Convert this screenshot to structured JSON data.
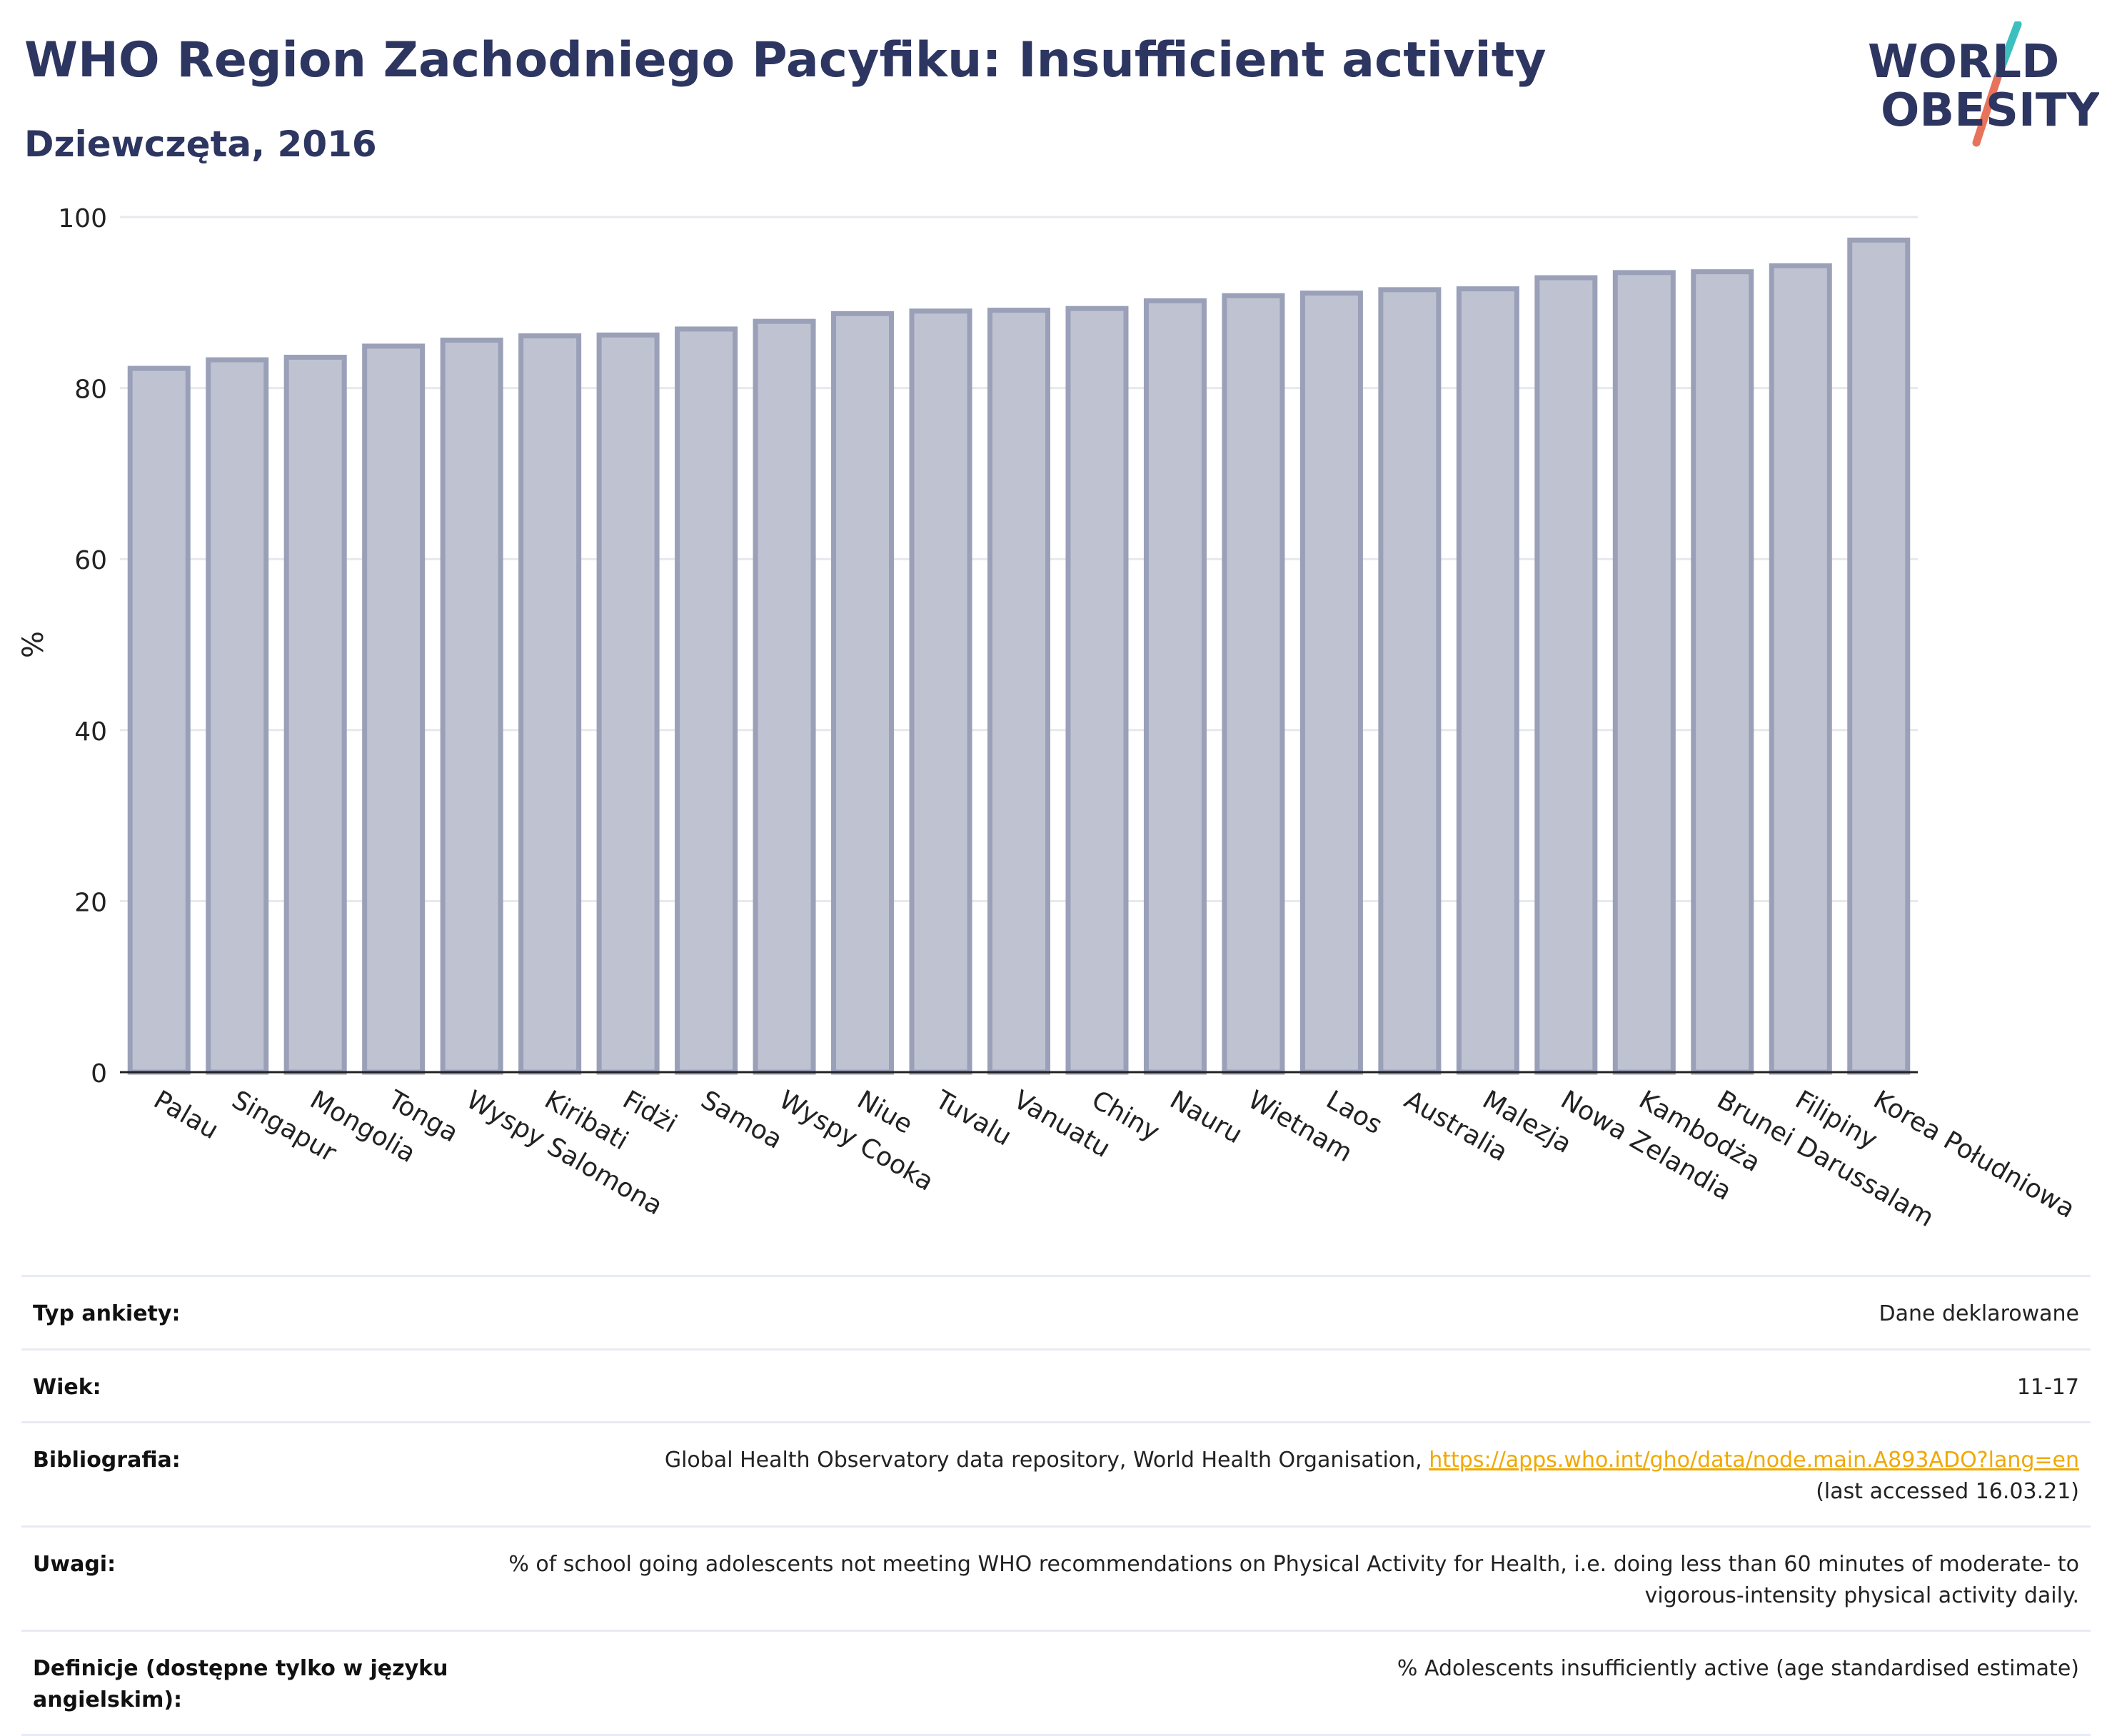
{
  "header": {
    "title": "WHO Region Zachodniego Pacyfiku: Insufficient activity",
    "subtitle": "Dziewczęta, 2016"
  },
  "logo": {
    "line1": "WORLD",
    "line2": "OBESITY",
    "colors": {
      "text": "#2d3561",
      "slash_top": "#3bbfbf",
      "slash_bottom": "#e8735a"
    }
  },
  "chart_data": {
    "type": "bar",
    "title": "WHO Region Zachodniego Pacyfiku: Insufficient activity",
    "subtitle": "Dziewczęta, 2016",
    "xlabel": "",
    "ylabel": "%",
    "ylim": [
      0,
      100
    ],
    "yticks": [
      0,
      20,
      40,
      60,
      80,
      100
    ],
    "grid": true,
    "categories": [
      "Palau",
      "Singapur",
      "Mongolia",
      "Tonga",
      "Wyspy Salomona",
      "Kiribati",
      "Fidżi",
      "Samoa",
      "Wyspy Cooka",
      "Niue",
      "Tuvalu",
      "Vanuatu",
      "Chiny",
      "Nauru",
      "Wietnam",
      "Laos",
      "Australia",
      "Malezja",
      "Nowa Zelandia",
      "Kambodża",
      "Brunei Darussalam",
      "Filipiny",
      "Korea Południowa"
    ],
    "values": [
      82.3,
      83.3,
      83.6,
      84.9,
      85.6,
      86.1,
      86.2,
      86.9,
      87.8,
      88.7,
      89.0,
      89.1,
      89.3,
      90.2,
      90.8,
      91.1,
      91.5,
      91.6,
      92.9,
      93.5,
      93.6,
      94.3,
      97.3
    ],
    "colors": {
      "bar_fill": "#bfc3d1",
      "bar_stroke": "#9aa0b8",
      "grid": "#e6e8ee",
      "axis": "#222222"
    }
  },
  "metadata": {
    "rows": [
      {
        "label": "Typ ankiety:",
        "value": "Dane deklarowane"
      },
      {
        "label": "Wiek:",
        "value": "11-17"
      },
      {
        "label": "Bibliografia:",
        "value": "Global Health Observatory data repository, World Health Organisation,",
        "link": "https://apps.who.int/gho/data/node.main.A893ADO?lang=en",
        "value_after": "(last accessed 16.03.21)"
      },
      {
        "label": "Uwagi:",
        "value": "% of school going adolescents not meeting WHO recommendations on Physical Activity for Health, i.e. doing less than 60 minutes of moderate- to vigorous-intensity physical activity daily."
      },
      {
        "label": "Definicje (dostępne tylko w języku angielskim):",
        "value": "% Adolescents insufficiently active (age standardised estimate)"
      }
    ]
  }
}
